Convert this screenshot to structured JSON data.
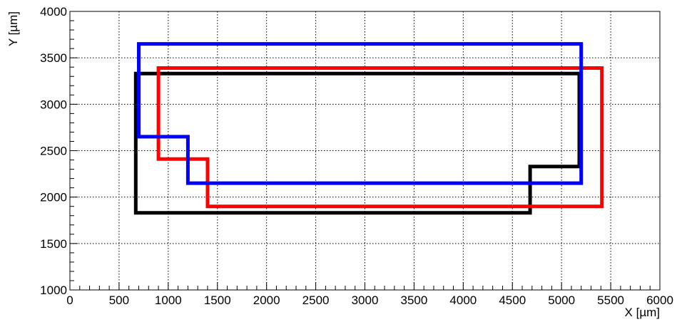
{
  "chart_data": {
    "type": "line",
    "title": "",
    "xlabel": "X [µm]",
    "ylabel": "Y [µm]",
    "xlim": [
      0,
      6000
    ],
    "ylim": [
      1000,
      4000
    ],
    "x_ticks": [
      0,
      500,
      1000,
      1500,
      2000,
      2500,
      3000,
      3500,
      4000,
      4500,
      5000,
      5500,
      6000
    ],
    "y_ticks": [
      1000,
      1500,
      2000,
      2500,
      3000,
      3500,
      4000
    ],
    "x_tick_labels": [
      "0",
      "500",
      "1000",
      "1500",
      "2000",
      "2500",
      "3000",
      "3500",
      "4000",
      "4500",
      "5000",
      "5500",
      "6000"
    ],
    "y_tick_labels": [
      "1000",
      "1500",
      "2000",
      "2500",
      "3000",
      "3500",
      "4000"
    ],
    "grid": true,
    "legend": "none",
    "series": [
      {
        "color": "#000000",
        "points": [
          [
            670,
            1830
          ],
          [
            670,
            3330
          ],
          [
            5180,
            3330
          ],
          [
            5180,
            2330
          ],
          [
            4680,
            2330
          ],
          [
            4680,
            1830
          ],
          [
            670,
            1830
          ]
        ]
      },
      {
        "color": "#ff0000",
        "points": [
          [
            900,
            2410
          ],
          [
            900,
            3390
          ],
          [
            5410,
            3390
          ],
          [
            5410,
            1900
          ],
          [
            1400,
            1900
          ],
          [
            1400,
            2410
          ],
          [
            900,
            2410
          ]
        ]
      },
      {
        "color": "#0000ff",
        "points": [
          [
            700,
            2650
          ],
          [
            700,
            3650
          ],
          [
            5200,
            3650
          ],
          [
            5200,
            2150
          ],
          [
            1200,
            2150
          ],
          [
            1200,
            2650
          ],
          [
            700,
            2650
          ]
        ]
      }
    ]
  }
}
